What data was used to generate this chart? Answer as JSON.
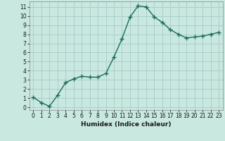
{
  "x": [
    0,
    1,
    2,
    3,
    4,
    5,
    6,
    7,
    8,
    9,
    10,
    11,
    12,
    13,
    14,
    15,
    16,
    17,
    18,
    19,
    20,
    21,
    22,
    23
  ],
  "y": [
    1.1,
    0.5,
    0.1,
    1.3,
    2.7,
    3.1,
    3.4,
    3.3,
    3.3,
    3.7,
    5.5,
    7.5,
    9.9,
    11.1,
    11.0,
    9.9,
    9.3,
    8.5,
    8.0,
    7.6,
    7.7,
    7.8,
    8.0,
    8.2
  ],
  "xlabel": "Humidex (Indice chaleur)",
  "line_color": "#1a6b5a",
  "marker_color": "#1a6b5a",
  "bg_color": "#c8e8e0",
  "grid_color": "#a8ccc8",
  "ylim_min": -0.3,
  "ylim_max": 11.6,
  "xlim_min": -0.5,
  "xlim_max": 23.5,
  "yticks": [
    0,
    1,
    2,
    3,
    4,
    5,
    6,
    7,
    8,
    9,
    10,
    11
  ],
  "xticks": [
    0,
    1,
    2,
    3,
    4,
    5,
    6,
    7,
    8,
    9,
    10,
    11,
    12,
    13,
    14,
    15,
    16,
    17,
    18,
    19,
    20,
    21,
    22,
    23
  ],
  "tick_fontsize": 5.5,
  "xlabel_fontsize": 6.5,
  "linewidth": 1.0,
  "markersize": 4.0
}
